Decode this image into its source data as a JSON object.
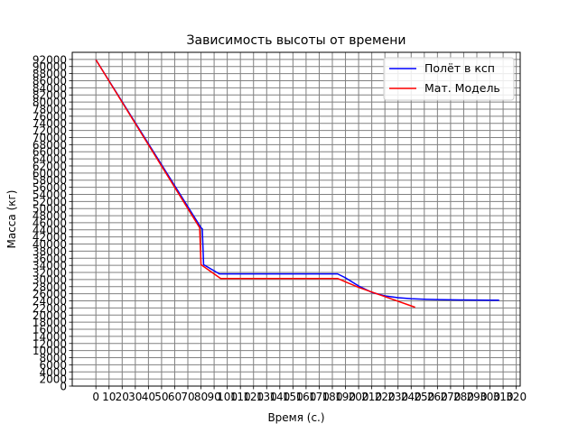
{
  "chart_data": {
    "type": "line",
    "title": "Зависимость высоты от времени",
    "xlabel": "Время (с.)",
    "ylabel": "Масса (кг)",
    "xlim": [
      -18,
      323
    ],
    "ylim": [
      0,
      94000
    ],
    "x_ticks": [
      0,
      10,
      20,
      30,
      40,
      50,
      60,
      70,
      80,
      90,
      100,
      110,
      120,
      130,
      140,
      150,
      160,
      170,
      180,
      190,
      200,
      210,
      220,
      230,
      240,
      250,
      260,
      270,
      280,
      290,
      300,
      310,
      320
    ],
    "x_tick_labels": [
      "0",
      "10",
      "20",
      "30",
      "40",
      "50",
      "60",
      "70",
      "80",
      "90",
      "100",
      "110",
      "120",
      "130",
      "140",
      "150",
      "160",
      "170",
      "180",
      "190",
      "200",
      "210",
      "220",
      "230",
      "240",
      "250",
      "260",
      "270",
      "280",
      "290",
      "300",
      "310",
      "320"
    ],
    "y_ticks": [
      0,
      2000,
      4000,
      6000,
      8000,
      10000,
      12000,
      14000,
      16000,
      18000,
      20000,
      22000,
      24000,
      26000,
      28000,
      30000,
      32000,
      34000,
      36000,
      38000,
      40000,
      42000,
      44000,
      46000,
      48000,
      50000,
      52000,
      54000,
      56000,
      58000,
      60000,
      62000,
      64000,
      66000,
      68000,
      70000,
      72000,
      74000,
      76000,
      78000,
      80000,
      82000,
      84000,
      86000,
      88000,
      90000,
      92000
    ],
    "y_tick_labels": [
      "0",
      "2000",
      "4000",
      "6000",
      "8000",
      "10000",
      "12000",
      "14000",
      "16000",
      "18000",
      "20000",
      "22000",
      "24000",
      "26000",
      "28000",
      "30000",
      "32000",
      "34000",
      "36000",
      "38000",
      "40000",
      "42000",
      "44000",
      "46000",
      "48000",
      "50000",
      "52000",
      "54000",
      "56000",
      "58000",
      "60000",
      "62000",
      "64000",
      "66000",
      "68000",
      "70000",
      "72000",
      "74000",
      "76000",
      "78000",
      "80000",
      "82000",
      "84000",
      "86000",
      "88000",
      "90000",
      "92000"
    ],
    "grid": true,
    "legend_position": "top-right",
    "series": [
      {
        "name": "Полёт в ксп",
        "color": "#0000ff",
        "x": [
          0,
          80,
          81,
          82,
          94,
          184,
          190,
          200,
          210,
          220,
          230,
          240,
          250,
          260,
          280,
          300,
          307
        ],
        "y": [
          91900,
          44600,
          44300,
          34200,
          31600,
          31600,
          30500,
          28200,
          26400,
          25400,
          24900,
          24600,
          24450,
          24350,
          24250,
          24200,
          24200
        ]
      },
      {
        "name": "Мат. Модель",
        "color": "#ff0000",
        "x": [
          0,
          79,
          80,
          95,
          184,
          200,
          220,
          243
        ],
        "y": [
          91900,
          44600,
          34200,
          30300,
          30300,
          27800,
          25200,
          22200
        ]
      }
    ]
  }
}
